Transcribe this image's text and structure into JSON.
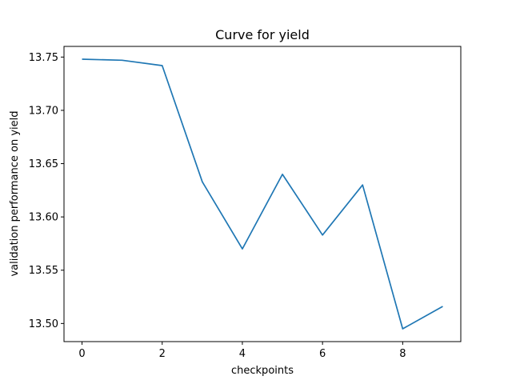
{
  "chart_data": {
    "type": "line",
    "title": "Curve for yield",
    "xlabel": "checkpoints",
    "ylabel": "validation performance on yield",
    "xlim": [
      -0.45,
      9.45
    ],
    "ylim": [
      13.483,
      13.76
    ],
    "xticks": [
      0,
      2,
      4,
      6,
      8
    ],
    "xtick_labels": [
      "0",
      "2",
      "4",
      "6",
      "8"
    ],
    "yticks": [
      13.5,
      13.55,
      13.6,
      13.65,
      13.7,
      13.75
    ],
    "ytick_labels": [
      "13.50",
      "13.55",
      "13.60",
      "13.65",
      "13.70",
      "13.75"
    ],
    "grid": false,
    "series": [
      {
        "color": "#1f77b4",
        "x": [
          0,
          1,
          2,
          3,
          4,
          5,
          6,
          7,
          8,
          9
        ],
        "y": [
          13.748,
          13.747,
          13.742,
          13.633,
          13.57,
          13.64,
          13.583,
          13.63,
          13.495,
          13.516
        ]
      }
    ]
  }
}
